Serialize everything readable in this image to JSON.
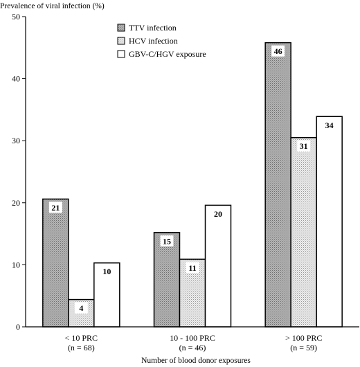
{
  "chart_data": {
    "type": "bar",
    "title": "",
    "ylabel": "Prevalence of viral infection (%)",
    "xlabel": "Number of blood donor exposures",
    "ylim": [
      0,
      50
    ],
    "yticks": [
      0,
      10,
      20,
      30,
      40,
      50
    ],
    "grid": false,
    "legend_position": "top-left",
    "categories": [
      [
        "< 10 PRC",
        "(n = 68)"
      ],
      [
        "10 - 100 PRC",
        "(n = 46)"
      ],
      [
        "> 100 PRC",
        "(n = 59)"
      ]
    ],
    "series": [
      {
        "name": "TTV infection",
        "values": [
          20.6,
          15.2,
          45.8
        ],
        "labels": [
          "21",
          "15",
          "46"
        ],
        "color": "#a9a9a9",
        "pattern": "dark-dots"
      },
      {
        "name": "HCV infection",
        "values": [
          4.4,
          10.9,
          30.5
        ],
        "labels": [
          "4",
          "11",
          "31"
        ],
        "color": "#dddddd",
        "pattern": "light-dots"
      },
      {
        "name": "GBV-C/HGV exposure",
        "values": [
          10.3,
          19.6,
          33.9
        ],
        "labels": [
          "10",
          "20",
          "34"
        ],
        "color": "#ffffff",
        "pattern": "none"
      }
    ]
  }
}
